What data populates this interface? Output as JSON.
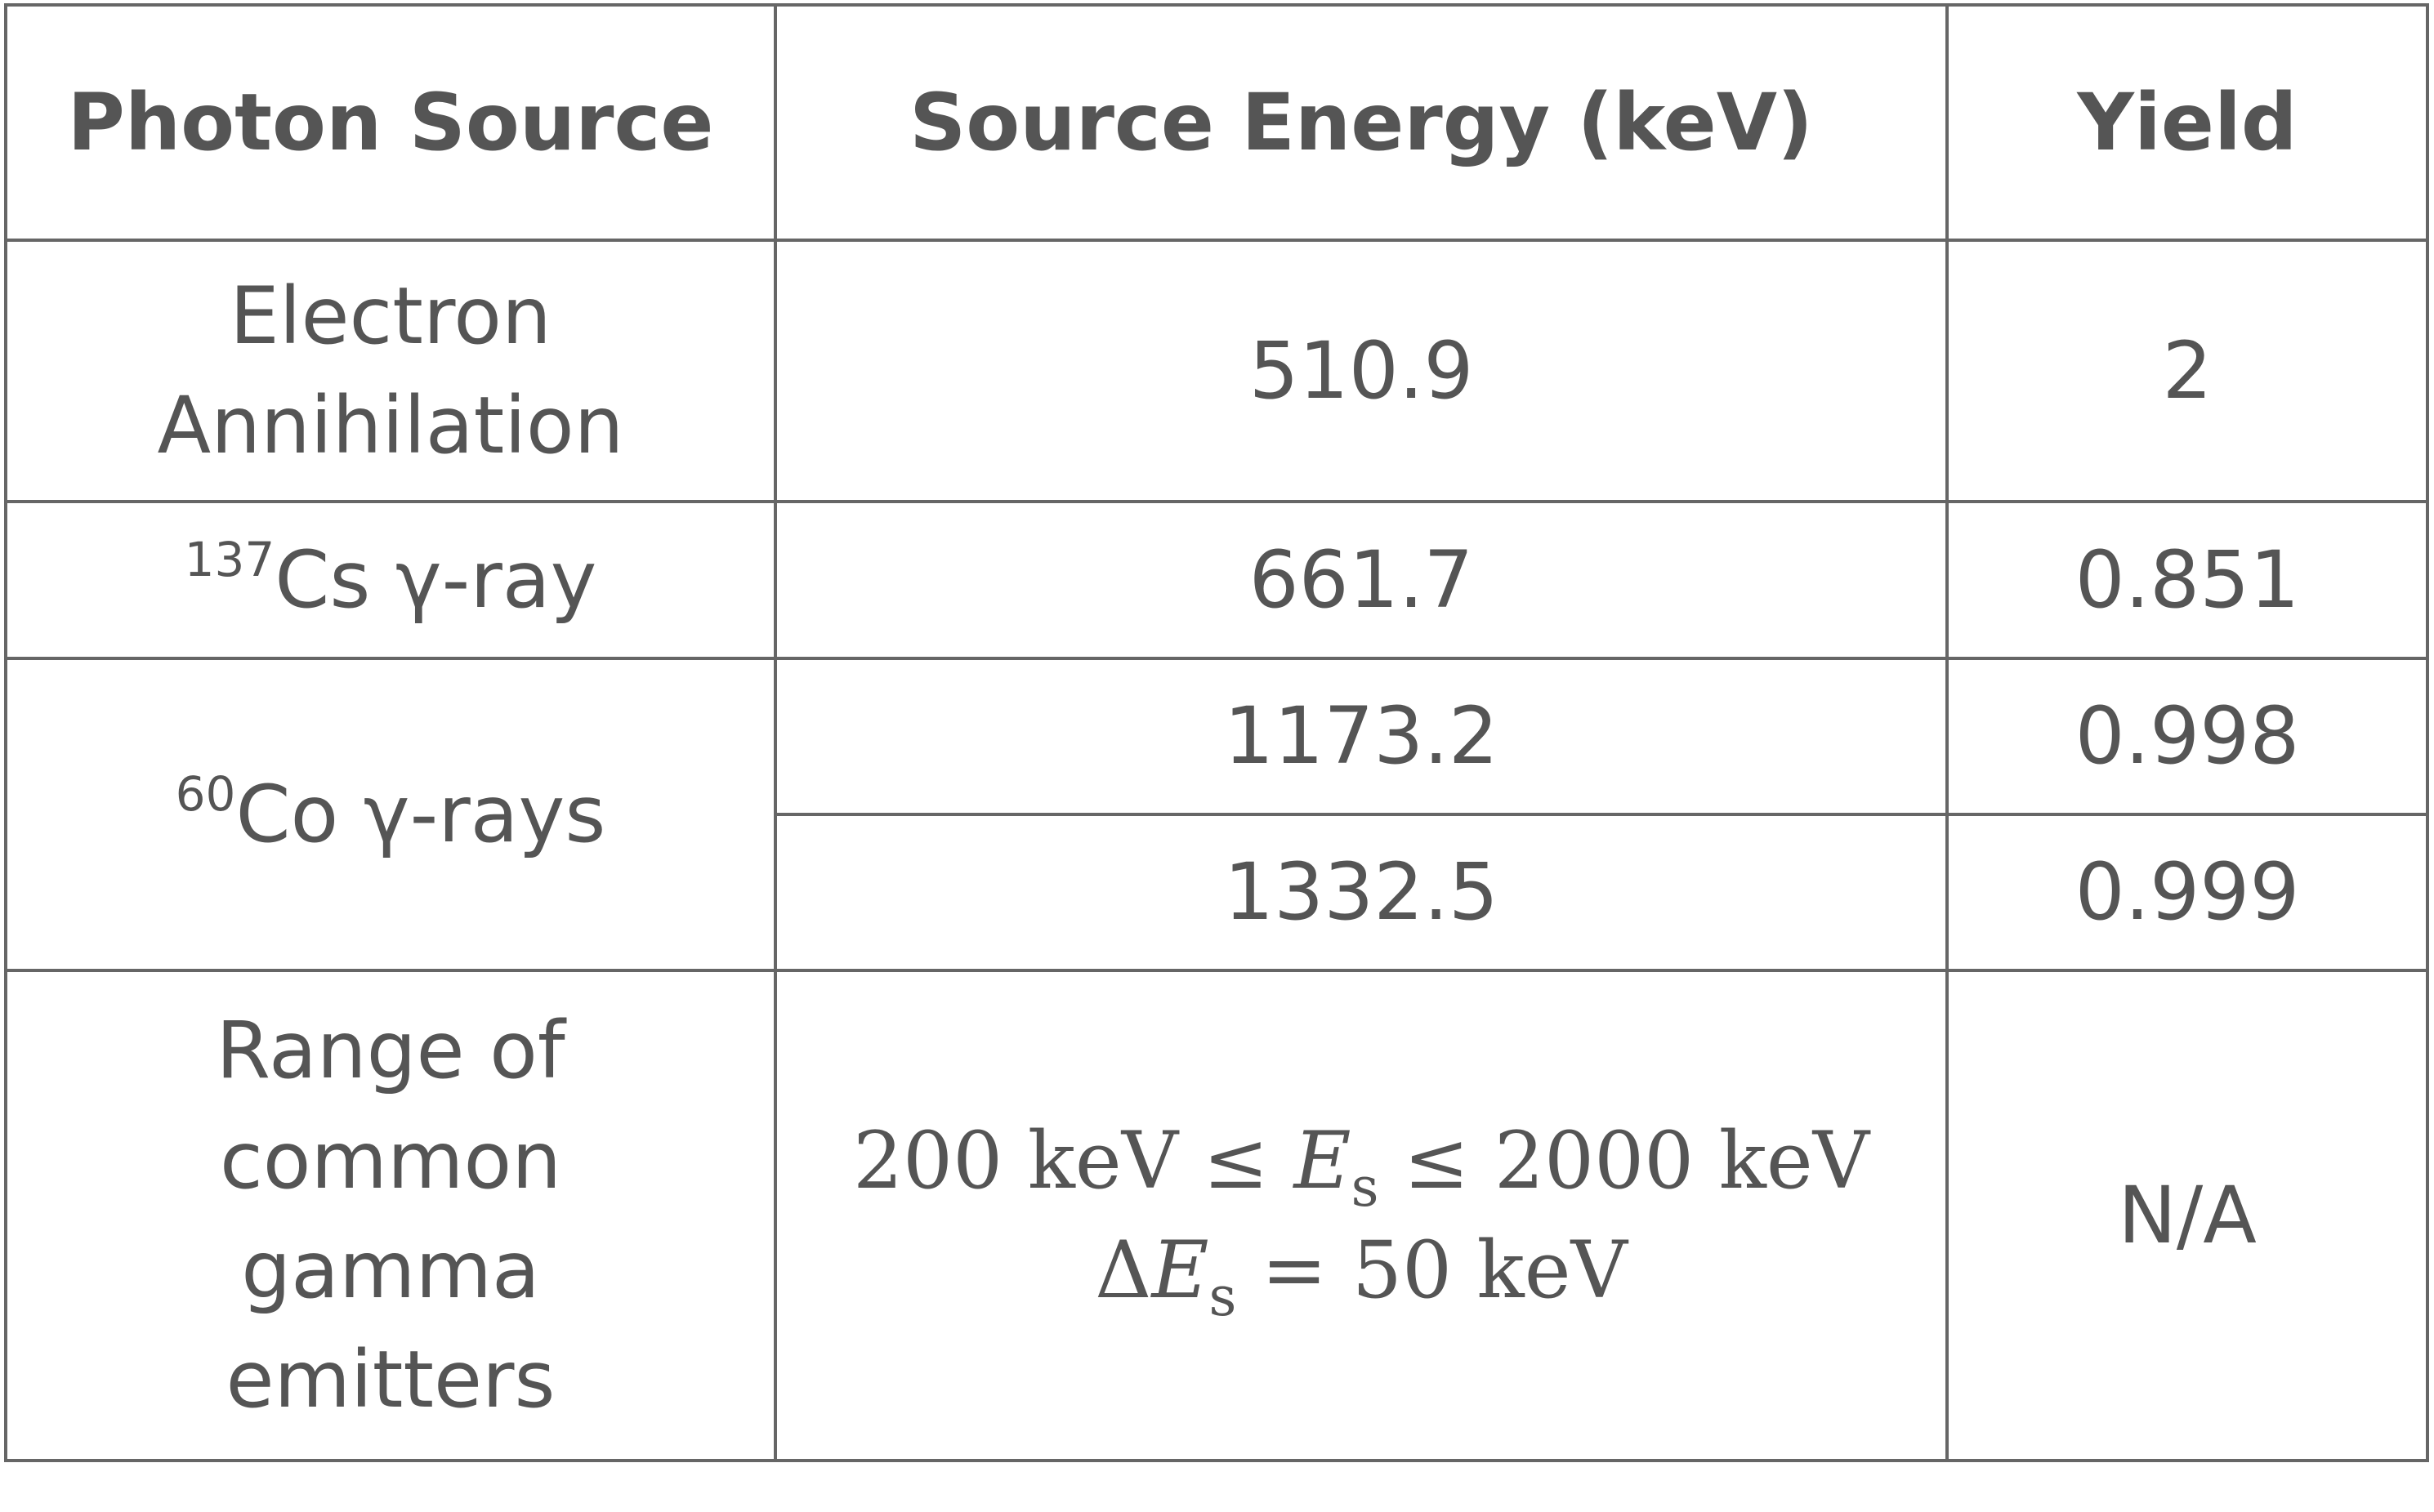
{
  "headers": {
    "source": "Photon Source",
    "energy": "Source Energy (keV)",
    "yield": "Yield"
  },
  "rows": {
    "annihilation": {
      "source_line1": "Electron",
      "source_line2": "Annihilation",
      "energy": "510.9",
      "yield": "2"
    },
    "cs137": {
      "isotope_mass": "137",
      "source_label": "Cs γ-ray",
      "energy": "661.7",
      "yield": "0.851"
    },
    "co60": {
      "isotope_mass": "60",
      "source_label": "Co γ-rays",
      "energy_1": "1173.2",
      "yield_1": "0.998",
      "energy_2": "1332.5",
      "yield_2": "0.999"
    },
    "range": {
      "source_line1": "Range of",
      "source_line2": "common",
      "source_line3": "gamma",
      "source_line4": "emitters",
      "eq1_start": "200 keV ≤ ",
      "eq1_var": "E",
      "eq1_sub": "s",
      "eq1_end": " ≤ 2000 keV",
      "eq2_start": "Δ",
      "eq2_var": "E",
      "eq2_sub": "s",
      "eq2_end": " = 50 keV",
      "yield": "N/A"
    }
  }
}
